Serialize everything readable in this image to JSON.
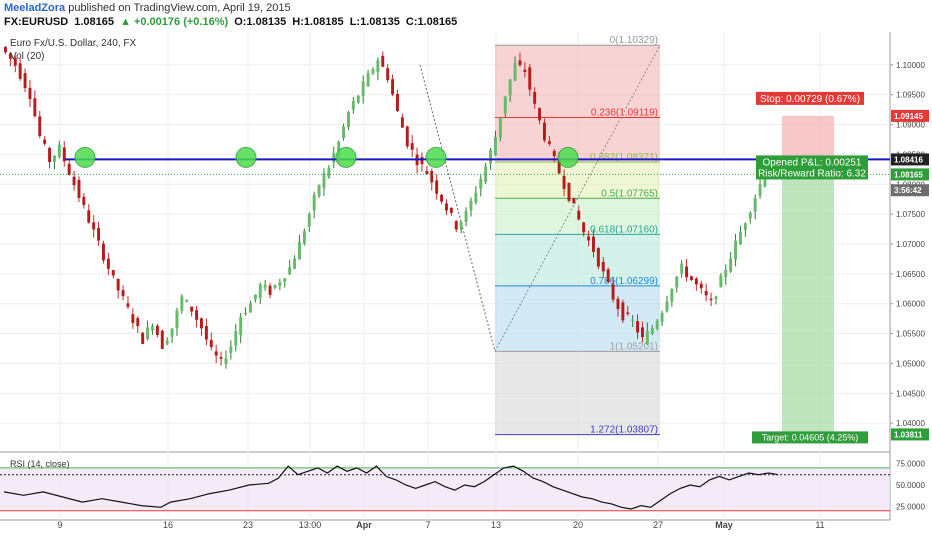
{
  "header": {
    "author": "MeeladZora",
    "published_text": "published on TradingView.com, April 19, 2015",
    "symbol": "FX:EURUSD",
    "last": "1.08165",
    "change": "+0.00176 (+0.16%)",
    "open": "O:1.08135",
    "high": "H:1.08185",
    "low": "L:1.08135",
    "close": "C:1.08165"
  },
  "chart_data": {
    "type": "candlestick",
    "title": "Euro Fx/U.S. Dollar, 240, FX",
    "volume_label": "Vol (20)",
    "x_tick_labels": [
      "9",
      "16",
      "23",
      "13:00",
      "Apr",
      "7",
      "13",
      "20",
      "27",
      "May",
      "11"
    ],
    "y_ticks": [
      "1.10000",
      "1.09500",
      "1.09000",
      "1.08500",
      "1.08000",
      "1.07500",
      "1.07000",
      "1.06500",
      "1.06000",
      "1.05500",
      "1.05000",
      "1.04500",
      "1.04000"
    ],
    "ylim": [
      1.0355,
      1.1055
    ],
    "price_path": [
      [
        0,
        1.103
      ],
      [
        3,
        1.1
      ],
      [
        6,
        1.095
      ],
      [
        8,
        1.088
      ],
      [
        10,
        1.084
      ],
      [
        12,
        1.086
      ],
      [
        14,
        1.082
      ],
      [
        17,
        1.076
      ],
      [
        20,
        1.07
      ],
      [
        23,
        1.064
      ],
      [
        26,
        1.059
      ],
      [
        29,
        1.054
      ],
      [
        31,
        1.057
      ],
      [
        33,
        1.053
      ],
      [
        35,
        1.056
      ],
      [
        37,
        1.061
      ],
      [
        39,
        1.059
      ],
      [
        41,
        1.056
      ],
      [
        43,
        1.052
      ],
      [
        45,
        1.05
      ],
      [
        47,
        1.053
      ],
      [
        49,
        1.058
      ],
      [
        51,
        1.06
      ],
      [
        53,
        1.063
      ],
      [
        55,
        1.062
      ],
      [
        57,
        1.064
      ],
      [
        59,
        1.066
      ],
      [
        61,
        1.07
      ],
      [
        63,
        1.075
      ],
      [
        65,
        1.08
      ],
      [
        67,
        1.083
      ],
      [
        69,
        1.087
      ],
      [
        71,
        1.092
      ],
      [
        73,
        1.095
      ],
      [
        75,
        1.098
      ],
      [
        77,
        1.101
      ],
      [
        79,
        1.098
      ],
      [
        81,
        1.092
      ],
      [
        83,
        1.087
      ],
      [
        85,
        1.084
      ],
      [
        87,
        1.082
      ],
      [
        89,
        1.079
      ],
      [
        91,
        1.076
      ],
      [
        93,
        1.073
      ],
      [
        95,
        1.075
      ],
      [
        97,
        1.079
      ],
      [
        99,
        1.083
      ],
      [
        101,
        1.088
      ],
      [
        103,
        1.095
      ],
      [
        105,
        1.1
      ],
      [
        107,
        1.099
      ],
      [
        109,
        1.093
      ],
      [
        111,
        1.088
      ],
      [
        113,
        1.084
      ],
      [
        115,
        1.08
      ],
      [
        117,
        1.076
      ],
      [
        119,
        1.072
      ],
      [
        121,
        1.069
      ],
      [
        123,
        1.065
      ],
      [
        125,
        1.061
      ],
      [
        127,
        1.058
      ],
      [
        129,
        1.057
      ],
      [
        131,
        1.054
      ],
      [
        133,
        1.056
      ],
      [
        135,
        1.059
      ],
      [
        137,
        1.063
      ],
      [
        139,
        1.066
      ],
      [
        141,
        1.064
      ],
      [
        143,
        1.062
      ],
      [
        145,
        1.06
      ],
      [
        147,
        1.064
      ],
      [
        149,
        1.068
      ],
      [
        151,
        1.072
      ],
      [
        153,
        1.076
      ],
      [
        155,
        1.08
      ],
      [
        157,
        1.083
      ],
      [
        158,
        1.0816
      ]
    ],
    "horizontal_lines": [
      1.08416
    ],
    "level_markers": [
      1.0845,
      1.0845,
      1.0845,
      1.0845,
      1.0845
    ],
    "fibonacci": {
      "levels": [
        {
          "ratio": 0,
          "price": 1.10329,
          "label": "0(1.10329)"
        },
        {
          "ratio": 0.236,
          "price": 1.09119,
          "label": "0.236(1.09119)"
        },
        {
          "ratio": 0.382,
          "price": 1.08371,
          "label": "0.382(1.08371)"
        },
        {
          "ratio": 0.5,
          "price": 1.07765,
          "label": "0.5(1.07765)"
        },
        {
          "ratio": 0.618,
          "price": 1.0716,
          "label": "0.618(1.07160)"
        },
        {
          "ratio": 0.786,
          "price": 1.06299,
          "label": "0.786(1.06299)"
        },
        {
          "ratio": 1,
          "price": 1.05201,
          "label": "1(1.05201)"
        },
        {
          "ratio": 1.272,
          "price": 1.03807,
          "label": "1.272(1.03807)"
        }
      ],
      "colors": [
        "#f4b6b6",
        "#f4b6b6",
        "#e2f0b8",
        "#c8eec8",
        "#b8eada",
        "#b8daf0",
        "#d8d8d8",
        "#b8b8f0"
      ]
    },
    "position": {
      "stop_label": "Stop: 0.00729 (0.67%)",
      "stop_price": 1.09145,
      "pnl_label": "Opened P&L: 0.00251",
      "rr_label": "Risk/Reward Ratio: 6.32",
      "entry_price": 1.08416,
      "target_price": 1.03811,
      "target_label": "Target: 0.04605 (4.25%)"
    },
    "price_tags": [
      {
        "price": 1.09145,
        "label": "1.09145",
        "color": "#e53935"
      },
      {
        "price": 1.08416,
        "label": "1.08416",
        "color": "#222222"
      },
      {
        "price": 1.08165,
        "label": "1.08165",
        "color": "#2e9e3a"
      },
      {
        "price": 1.079,
        "label": "3:56:42",
        "color": "#6d6d6d"
      },
      {
        "price": 1.03811,
        "label": "1.03811",
        "color": "#2e9e3a"
      }
    ]
  },
  "rsi": {
    "label": "RSI (14, close)",
    "ylim": [
      15,
      85
    ],
    "ticks": [
      "75.0000",
      "50.0000",
      "25.0000"
    ],
    "overbought": 70,
    "oversold": 20,
    "values": [
      [
        0,
        42
      ],
      [
        4,
        38
      ],
      [
        8,
        42
      ],
      [
        12,
        36
      ],
      [
        16,
        30
      ],
      [
        20,
        34
      ],
      [
        24,
        30
      ],
      [
        28,
        26
      ],
      [
        32,
        24
      ],
      [
        34,
        30
      ],
      [
        38,
        34
      ],
      [
        42,
        40
      ],
      [
        46,
        44
      ],
      [
        50,
        50
      ],
      [
        54,
        52
      ],
      [
        56,
        58
      ],
      [
        58,
        72
      ],
      [
        60,
        62
      ],
      [
        62,
        66
      ],
      [
        64,
        70
      ],
      [
        66,
        64
      ],
      [
        68,
        72
      ],
      [
        70,
        66
      ],
      [
        72,
        70
      ],
      [
        74,
        64
      ],
      [
        76,
        72
      ],
      [
        78,
        60
      ],
      [
        80,
        56
      ],
      [
        82,
        50
      ],
      [
        84,
        46
      ],
      [
        86,
        50
      ],
      [
        88,
        54
      ],
      [
        90,
        48
      ],
      [
        92,
        44
      ],
      [
        94,
        50
      ],
      [
        96,
        48
      ],
      [
        98,
        54
      ],
      [
        100,
        62
      ],
      [
        102,
        70
      ],
      [
        104,
        72
      ],
      [
        106,
        66
      ],
      [
        108,
        58
      ],
      [
        110,
        54
      ],
      [
        112,
        48
      ],
      [
        114,
        44
      ],
      [
        116,
        40
      ],
      [
        118,
        36
      ],
      [
        120,
        34
      ],
      [
        122,
        30
      ],
      [
        124,
        28
      ],
      [
        126,
        24
      ],
      [
        128,
        22
      ],
      [
        130,
        26
      ],
      [
        132,
        24
      ],
      [
        134,
        32
      ],
      [
        136,
        40
      ],
      [
        138,
        46
      ],
      [
        140,
        50
      ],
      [
        142,
        48
      ],
      [
        144,
        56
      ],
      [
        146,
        60
      ],
      [
        148,
        56
      ],
      [
        150,
        60
      ],
      [
        152,
        64
      ],
      [
        154,
        62
      ],
      [
        156,
        64
      ],
      [
        158,
        62
      ]
    ]
  }
}
